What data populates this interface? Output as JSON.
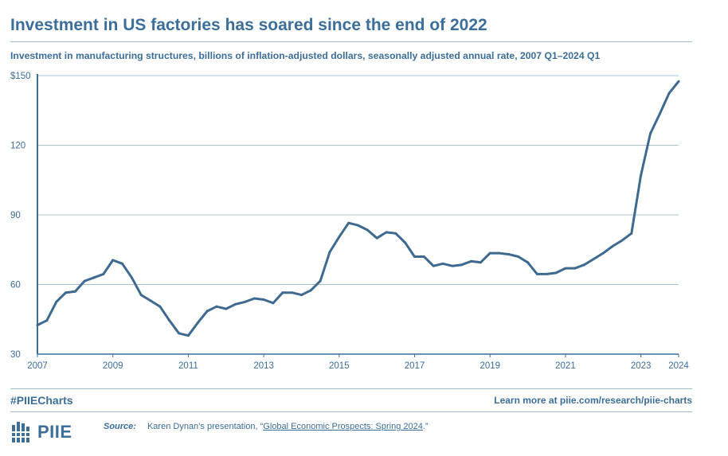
{
  "title": "Investment in US factories has soared since the end of 2022",
  "subtitle": "Investment in manufacturing structures, billions of inflation-adjusted dollars, seasonally adjusted annual rate, 2007 Q1–2024 Q1",
  "footer": {
    "hashtag": "#PIIECharts",
    "learn_more": "Learn more at piie.com/research/piie-charts",
    "source_label": "Source:",
    "source_prefix": "Karen Dynan’s presentation, “",
    "source_link": "Global Economic Prospects: Spring 2024",
    "source_suffix": ".”",
    "logo_text": "PIIE"
  },
  "colors": {
    "accent": "#3c6e9a",
    "line": "#3f6a8f",
    "grid": "#a9c3d6"
  },
  "chart_data": {
    "type": "line",
    "title": "Investment in US factories has soared since the end of 2022",
    "xlabel": "",
    "ylabel": "",
    "ylim": [
      30,
      150
    ],
    "xlim": [
      2007.0,
      2024.0
    ],
    "yticks": [
      {
        "value": 150,
        "label": "$150"
      },
      {
        "value": 120,
        "label": "120"
      },
      {
        "value": 90,
        "label": "90"
      },
      {
        "value": 60,
        "label": "60"
      },
      {
        "value": 30,
        "label": "30"
      }
    ],
    "xticks": [
      {
        "value": 2007,
        "label": "2007"
      },
      {
        "value": 2009,
        "label": "2009"
      },
      {
        "value": 2011,
        "label": "2011"
      },
      {
        "value": 2013,
        "label": "2013"
      },
      {
        "value": 2015,
        "label": "2015"
      },
      {
        "value": 2017,
        "label": "2017"
      },
      {
        "value": 2019,
        "label": "2019"
      },
      {
        "value": 2021,
        "label": "2021"
      },
      {
        "value": 2023,
        "label": "2023"
      },
      {
        "value": 2024,
        "label": "2024"
      }
    ],
    "series": [
      {
        "name": "Investment in manufacturing structures",
        "x": [
          2007.0,
          2007.25,
          2007.5,
          2007.75,
          2008.0,
          2008.25,
          2008.5,
          2008.75,
          2009.0,
          2009.25,
          2009.5,
          2009.75,
          2010.0,
          2010.25,
          2010.5,
          2010.75,
          2011.0,
          2011.25,
          2011.5,
          2011.75,
          2012.0,
          2012.25,
          2012.5,
          2012.75,
          2013.0,
          2013.25,
          2013.5,
          2013.75,
          2014.0,
          2014.25,
          2014.5,
          2014.75,
          2015.0,
          2015.25,
          2015.5,
          2015.75,
          2016.0,
          2016.25,
          2016.5,
          2016.75,
          2017.0,
          2017.25,
          2017.5,
          2017.75,
          2018.0,
          2018.25,
          2018.5,
          2018.75,
          2019.0,
          2019.25,
          2019.5,
          2019.75,
          2020.0,
          2020.25,
          2020.5,
          2020.75,
          2021.0,
          2021.25,
          2021.5,
          2021.75,
          2022.0,
          2022.25,
          2022.5,
          2022.75,
          2023.0,
          2023.25,
          2023.5,
          2023.75,
          2024.0
        ],
        "values": [
          42.5,
          44.5,
          52.5,
          56.5,
          57,
          61.5,
          63,
          64.5,
          70.5,
          69,
          63,
          55.5,
          53,
          50.5,
          44.5,
          39,
          38,
          43.5,
          48.5,
          50.5,
          49.5,
          51.5,
          52.5,
          54,
          53.5,
          52,
          56.5,
          56.5,
          55.5,
          57.5,
          61.5,
          74,
          80.5,
          86.5,
          85.5,
          83.5,
          80,
          82.5,
          82,
          78,
          72,
          72,
          68,
          69,
          68,
          68.5,
          70,
          69.5,
          73.5,
          73.5,
          73,
          72,
          69.5,
          64.5,
          64.5,
          65,
          67,
          67,
          68.5,
          71,
          73.5,
          76.5,
          79,
          82,
          107,
          125,
          133.5,
          142.5,
          147.5
        ]
      }
    ]
  }
}
